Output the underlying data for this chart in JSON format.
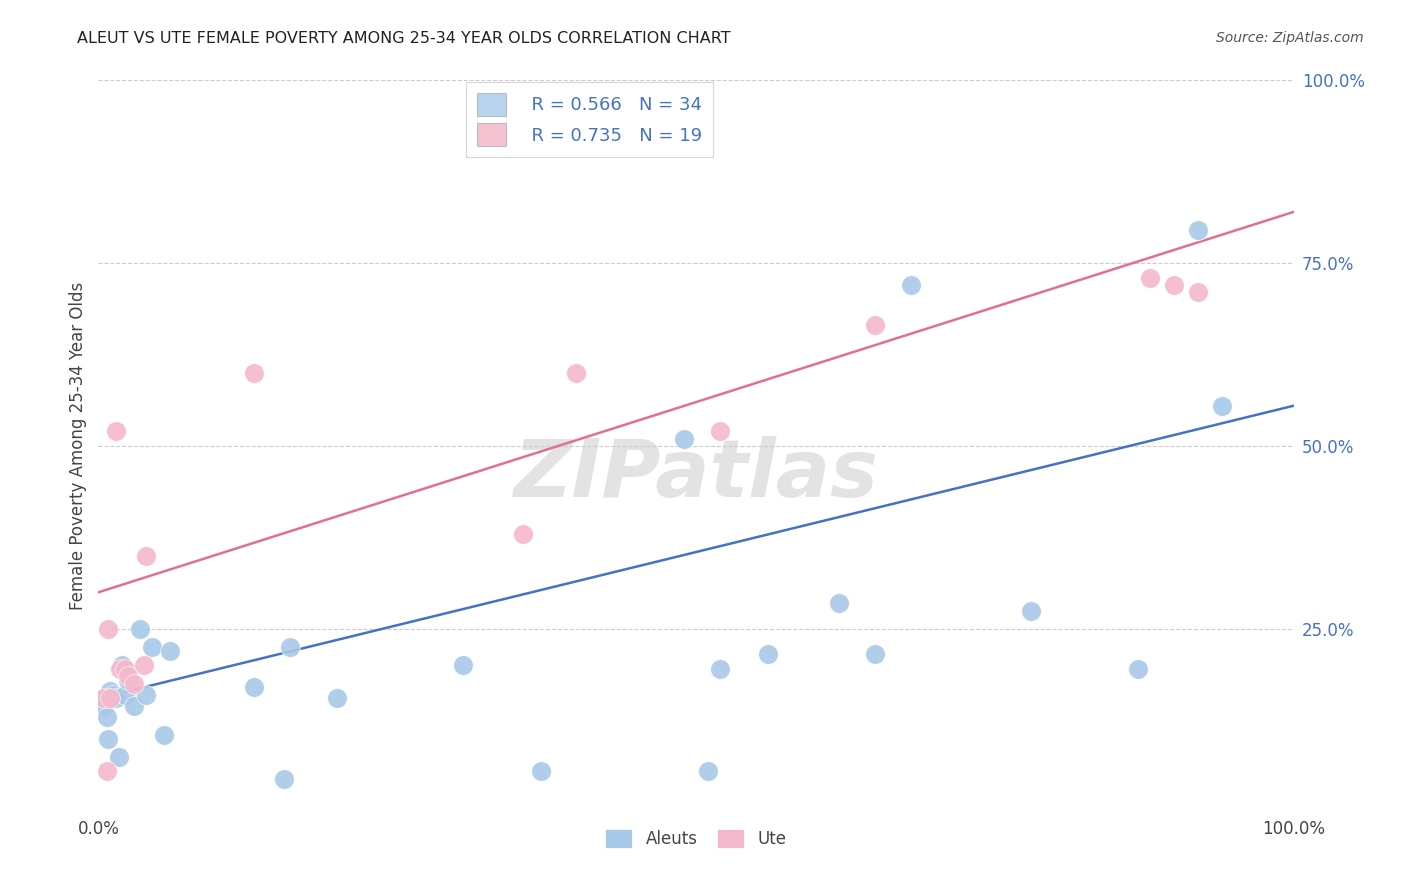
{
  "title": "ALEUT VS UTE FEMALE POVERTY AMONG 25-34 YEAR OLDS CORRELATION CHART",
  "source": "Source: ZipAtlas.com",
  "ylabel": "Female Poverty Among 25-34 Year Olds",
  "xlim": [
    0,
    1
  ],
  "ylim": [
    0,
    1
  ],
  "xtick_labels": [
    "0.0%",
    "100.0%"
  ],
  "ytick_labels": [
    "25.0%",
    "50.0%",
    "75.0%",
    "100.0%"
  ],
  "ytick_positions": [
    0.25,
    0.5,
    0.75,
    1.0
  ],
  "aleuts_color": "#a8c8e8",
  "ute_color": "#f4b8cc",
  "aleuts_line_color": "#4472c4",
  "ute_line_color": "#e07090",
  "aleuts_N": 34,
  "ute_N": 19,
  "aleuts_x": [
    0.005,
    0.005,
    0.007,
    0.008,
    0.01,
    0.012,
    0.015,
    0.017,
    0.02,
    0.022,
    0.025,
    0.03,
    0.035,
    0.04,
    0.045,
    0.055,
    0.06,
    0.13,
    0.155,
    0.16,
    0.2,
    0.305,
    0.37,
    0.49,
    0.51,
    0.52,
    0.56,
    0.62,
    0.65,
    0.68,
    0.78,
    0.87,
    0.92,
    0.94
  ],
  "aleuts_y": [
    0.155,
    0.145,
    0.13,
    0.1,
    0.165,
    0.16,
    0.155,
    0.075,
    0.2,
    0.16,
    0.18,
    0.145,
    0.25,
    0.16,
    0.225,
    0.105,
    0.22,
    0.17,
    0.045,
    0.225,
    0.155,
    0.2,
    0.055,
    0.51,
    0.055,
    0.195,
    0.215,
    0.285,
    0.215,
    0.72,
    0.275,
    0.195,
    0.795,
    0.555
  ],
  "ute_x": [
    0.005,
    0.007,
    0.008,
    0.01,
    0.015,
    0.018,
    0.022,
    0.025,
    0.03,
    0.038,
    0.04,
    0.13,
    0.355,
    0.4,
    0.52,
    0.65,
    0.88,
    0.9,
    0.92
  ],
  "ute_y": [
    0.155,
    0.055,
    0.25,
    0.155,
    0.52,
    0.195,
    0.195,
    0.185,
    0.175,
    0.2,
    0.35,
    0.6,
    0.38,
    0.6,
    0.52,
    0.665,
    0.73,
    0.72,
    0.71
  ],
  "aleuts_line_x0": 0.0,
  "aleuts_line_y0": 0.155,
  "aleuts_line_x1": 1.0,
  "aleuts_line_y1": 0.555,
  "ute_line_x0": 0.0,
  "ute_line_y0": 0.3,
  "ute_line_x1": 1.0,
  "ute_line_y1": 0.82,
  "background_color": "#ffffff",
  "watermark": "ZIPatlas",
  "legend_box_color_aleuts": "#b8d4ee",
  "legend_box_color_ute": "#f4c2d0",
  "legend_text_color": "#333333",
  "legend_rn_color": "#4472c4"
}
